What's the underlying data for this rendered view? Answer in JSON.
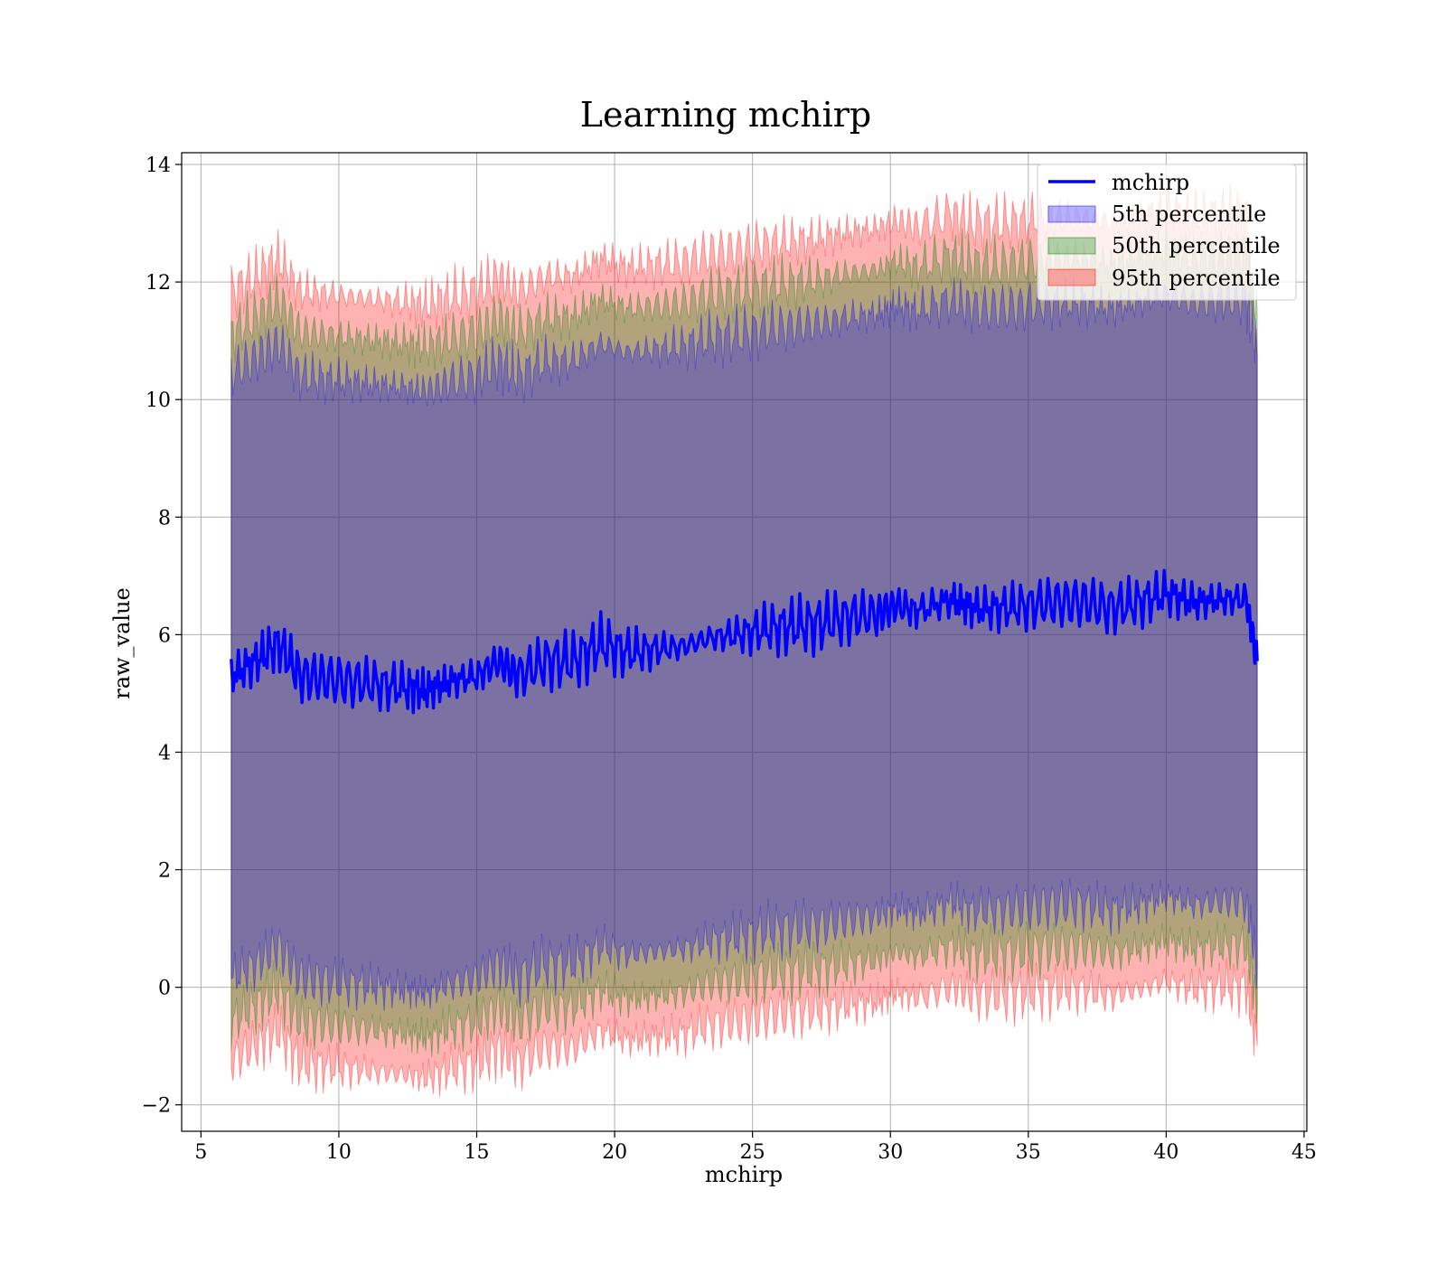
{
  "chart_data": {
    "type": "area",
    "title": "Learning mchirp",
    "xlabel": "mchirp",
    "ylabel": "raw_value",
    "xlim": [
      4.3,
      45.1
    ],
    "ylim": [
      -2.45,
      14.2
    ],
    "xticks": [
      5,
      10,
      15,
      20,
      25,
      30,
      35,
      40,
      45
    ],
    "yticks": [
      -2,
      0,
      2,
      4,
      6,
      8,
      10,
      12,
      14
    ],
    "ytick_labels": [
      "−2",
      "0",
      "2",
      "4",
      "6",
      "8",
      "10",
      "12",
      "14"
    ],
    "grid": true,
    "legend_position": "upper right",
    "legend": [
      "mchirp",
      "5th percentile",
      "50th percentile",
      "95th percentile"
    ],
    "colors": {
      "line": "#0000ff",
      "p5": "#0000ff",
      "p50": "#008000",
      "p95": "#ff0000",
      "grid": "#b0b0b0"
    },
    "x": [
      6.1,
      7.0,
      7.8,
      8.6,
      9.5,
      10.5,
      11.5,
      12.5,
      13.2,
      14.0,
      15.0,
      15.8,
      16.5,
      17.5,
      18.5,
      19.5,
      20.5,
      21.5,
      22.5,
      23.5,
      24.5,
      25.5,
      26.5,
      27.5,
      28.5,
      29.5,
      30.2,
      31.0,
      32.2,
      33.0,
      34.0,
      35.0,
      36.0,
      37.0,
      38.0,
      39.0,
      40.0,
      41.0,
      42.0,
      42.9,
      43.3
    ],
    "series": [
      {
        "name": "mchirp",
        "values": [
          5.3,
          5.55,
          5.85,
          5.3,
          5.25,
          5.2,
          5.15,
          5.1,
          5.05,
          5.2,
          5.3,
          5.55,
          5.3,
          5.55,
          5.55,
          5.85,
          5.7,
          5.75,
          5.8,
          5.95,
          6.0,
          6.1,
          6.15,
          6.2,
          6.3,
          6.35,
          6.5,
          6.4,
          6.6,
          6.45,
          6.45,
          6.5,
          6.55,
          6.55,
          6.45,
          6.55,
          6.7,
          6.55,
          6.6,
          6.6,
          5.55
        ]
      },
      {
        "name": "5th percentile",
        "upper": [
          10.45,
          10.7,
          10.95,
          10.4,
          10.35,
          10.3,
          10.25,
          10.2,
          10.15,
          10.3,
          10.4,
          10.65,
          10.4,
          10.65,
          10.65,
          10.95,
          10.8,
          10.85,
          10.9,
          11.05,
          11.1,
          11.2,
          11.25,
          11.3,
          11.4,
          11.45,
          11.6,
          11.5,
          11.7,
          11.55,
          11.55,
          11.6,
          11.65,
          11.65,
          11.55,
          11.65,
          11.8,
          11.65,
          11.7,
          11.7,
          10.75
        ],
        "lower": [
          0.15,
          0.4,
          0.7,
          0.15,
          0.1,
          0.05,
          0.0,
          -0.05,
          -0.1,
          0.05,
          0.15,
          0.4,
          0.15,
          0.4,
          0.4,
          0.7,
          0.55,
          0.6,
          0.65,
          0.8,
          0.85,
          0.95,
          1.0,
          1.05,
          1.15,
          1.2,
          1.35,
          1.25,
          1.45,
          1.3,
          1.3,
          1.35,
          1.4,
          1.4,
          1.3,
          1.4,
          1.55,
          1.4,
          1.45,
          1.45,
          0.35
        ]
      },
      {
        "name": "50th percentile",
        "upper": [
          11.15,
          11.4,
          11.7,
          11.15,
          11.1,
          11.05,
          11.0,
          10.95,
          10.9,
          11.05,
          11.15,
          11.4,
          11.15,
          11.4,
          11.4,
          11.7,
          11.55,
          11.6,
          11.65,
          11.8,
          11.85,
          11.95,
          12.0,
          12.05,
          12.15,
          12.2,
          12.35,
          12.25,
          12.45,
          12.3,
          12.3,
          12.35,
          12.4,
          12.4,
          12.3,
          12.4,
          12.55,
          12.4,
          12.45,
          12.45,
          11.45
        ],
        "lower": [
          -0.6,
          -0.3,
          -0.05,
          -0.6,
          -0.65,
          -0.7,
          -0.75,
          -0.8,
          -0.85,
          -0.7,
          -0.6,
          -0.35,
          -0.6,
          -0.35,
          -0.35,
          -0.05,
          -0.2,
          -0.15,
          -0.1,
          0.05,
          0.1,
          0.2,
          0.25,
          0.3,
          0.4,
          0.45,
          0.6,
          0.5,
          0.7,
          0.55,
          0.55,
          0.6,
          0.65,
          0.65,
          0.55,
          0.65,
          0.8,
          0.65,
          0.7,
          0.7,
          -0.35
        ]
      },
      {
        "name": "95th percentile",
        "upper": [
          11.85,
          12.1,
          12.4,
          11.85,
          11.8,
          11.75,
          11.7,
          11.65,
          11.6,
          11.75,
          11.85,
          12.1,
          11.85,
          12.1,
          12.1,
          12.4,
          12.25,
          12.3,
          12.35,
          12.5,
          12.55,
          12.65,
          12.7,
          12.75,
          12.85,
          12.9,
          13.05,
          12.95,
          13.15,
          13.0,
          13.0,
          13.05,
          13.1,
          13.1,
          13.0,
          13.1,
          13.25,
          13.1,
          13.15,
          13.15,
          10.8
        ],
        "lower": [
          -1.25,
          -1.0,
          -0.75,
          -1.3,
          -1.35,
          -1.4,
          -1.45,
          -1.5,
          -1.55,
          -1.4,
          -1.3,
          -1.05,
          -1.3,
          -1.05,
          -1.05,
          -0.75,
          -0.9,
          -0.85,
          -0.8,
          -0.65,
          -0.6,
          -0.5,
          -0.45,
          -0.4,
          -0.3,
          -0.25,
          -0.1,
          -0.2,
          0.0,
          -0.15,
          -0.15,
          -0.1,
          -0.05,
          -0.05,
          -0.15,
          -0.05,
          0.1,
          -0.05,
          0.0,
          0.0,
          -1.0
        ]
      }
    ]
  }
}
